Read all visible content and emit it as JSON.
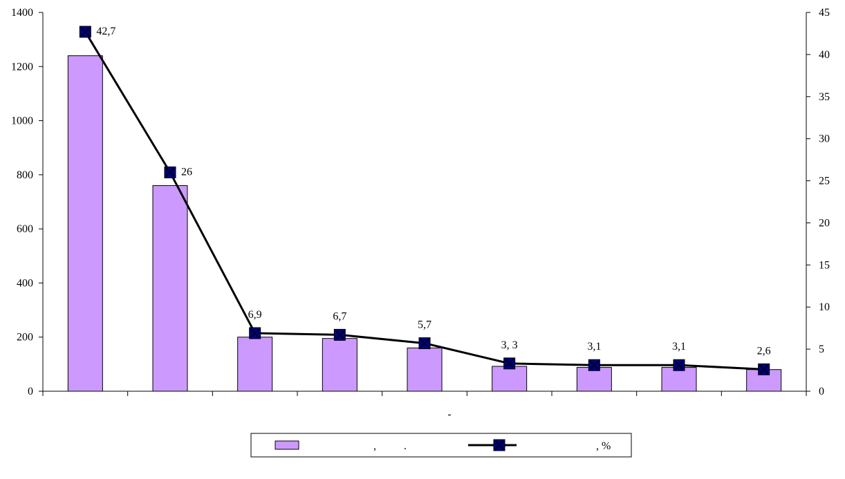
{
  "chart_data": {
    "type": "bar",
    "title": "",
    "xlabel": "-",
    "ylabel": "",
    "categories": [
      "",
      "",
      "",
      "",
      "",
      "",
      "",
      "",
      ""
    ],
    "series": [
      {
        "axis": "left",
        "type": "bar",
        "values": [
          1240,
          760,
          200,
          195,
          160,
          92,
          88,
          88,
          80
        ],
        "color": "#cc99ff"
      },
      {
        "axis": "right",
        "type": "line",
        "values": [
          42.7,
          26,
          6.9,
          6.7,
          5.7,
          3.3,
          3.1,
          3.1,
          2.6
        ],
        "data_labels": [
          "42,7",
          "26",
          "6,9",
          "6,7",
          "5,7",
          "3, 3",
          "3,1",
          "3,1",
          "2,6"
        ],
        "marker": "x-square",
        "color": "#000000",
        "marker_color": "#000080"
      }
    ],
    "y_left": {
      "min": 0,
      "max": 1400,
      "ticks": [
        0,
        200,
        400,
        600,
        800,
        1000,
        1200,
        1400
      ]
    },
    "y_right": {
      "min": 0,
      "max": 45,
      "ticks": [
        0,
        5,
        10,
        15,
        20,
        25,
        30,
        35,
        40,
        45
      ]
    },
    "grid": false,
    "legend": {
      "position": "bottom",
      "items": [
        {
          "marker": "bar",
          "text": ",          ."
        },
        {
          "marker": "line-x-square",
          "text": ", %"
        }
      ]
    }
  }
}
